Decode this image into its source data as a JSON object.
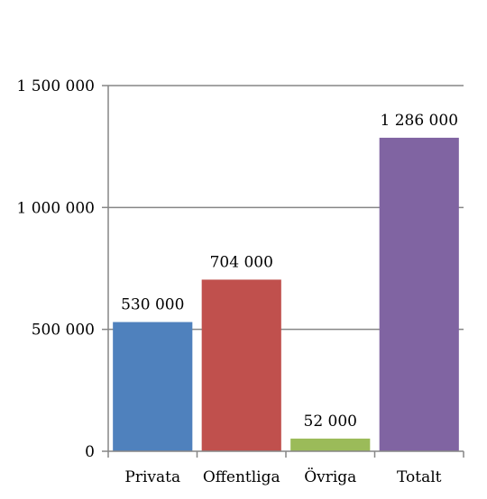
{
  "chart_data": {
    "type": "bar",
    "categories": [
      "Privata",
      "Offentliga",
      "Övriga",
      "Totalt"
    ],
    "values": [
      530000,
      704000,
      52000,
      1286000
    ],
    "data_labels": [
      "530 000",
      "704 000",
      "52 000",
      "1 286 000"
    ],
    "bar_colors": [
      "#4F81BD",
      "#C0504D",
      "#9BBB59",
      "#8064A2"
    ],
    "ylim": [
      0,
      1500000
    ],
    "yticks": [
      0,
      500000,
      1000000,
      1500000
    ],
    "ytick_labels": [
      "0",
      "500 000",
      "1 000 000",
      "1 500 000"
    ],
    "grid": true,
    "legend": "none"
  }
}
